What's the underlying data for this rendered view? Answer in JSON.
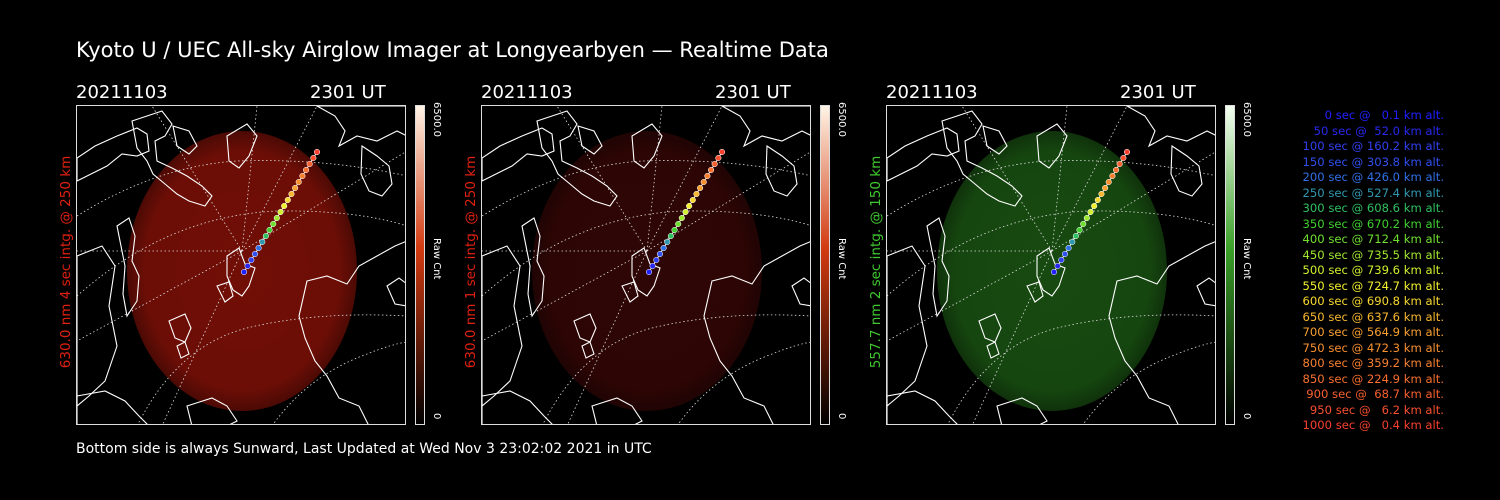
{
  "title": "Kyoto U / UEC All-sky Airglow Imager at Longyearbyen — Realtime Data",
  "footer": "Bottom side is always Sunward, Last Updated at Wed Nov  3 23:02:02 2021 in UTC",
  "panels": [
    {
      "date": "20211103",
      "time": "2301 UT",
      "ylabel": "630.0 nm 4 sec intg. @ 250 km",
      "label_color": "#e02010",
      "cbar_max": "6500.0",
      "cbar_unit": "Raw Cnt",
      "cbar_min": "0",
      "glow_color": "#8a1208",
      "glow_opacity": 0.82,
      "cbar_top": "#fff4e6",
      "cbar_bottom": "#000000",
      "cbar_mid": "#d23a10"
    },
    {
      "date": "20211103",
      "time": "2301 UT",
      "ylabel": "630.0 nm 1 sec intg. @ 250 km",
      "label_color": "#e02010",
      "cbar_max": "6500.0",
      "cbar_unit": "Raw Cnt",
      "cbar_min": "0",
      "glow_color": "#3a0706",
      "glow_opacity": 0.8,
      "cbar_top": "#fff4e6",
      "cbar_bottom": "#000000",
      "cbar_mid": "#d23a10"
    },
    {
      "date": "20211103",
      "time": "2301 UT",
      "ylabel": "557.7 nm 2 sec intg. @ 150 km",
      "label_color": "#40c830",
      "cbar_max": "6500.0",
      "cbar_unit": "Raw Cnt",
      "cbar_min": "0",
      "glow_color": "#1c5a14",
      "glow_opacity": 0.82,
      "cbar_top": "#f4fff0",
      "cbar_bottom": "#000000",
      "cbar_mid": "#3aa028"
    }
  ],
  "legend": [
    {
      "text": "0 sec @   0.1 km alt.",
      "color": "#2020ff"
    },
    {
      "text": "50 sec @  52.0 km alt.",
      "color": "#2828f0"
    },
    {
      "text": "100 sec @ 160.2 km alt.",
      "color": "#3040f0"
    },
    {
      "text": "150 sec @ 303.8 km alt.",
      "color": "#3050f0"
    },
    {
      "text": "200 sec @ 426.0 km alt.",
      "color": "#3070e8"
    },
    {
      "text": "250 sec @ 527.4 km alt.",
      "color": "#3098b0"
    },
    {
      "text": "300 sec @ 608.6 km alt.",
      "color": "#30c060"
    },
    {
      "text": "350 sec @ 670.2 km alt.",
      "color": "#40d030"
    },
    {
      "text": "400 sec @ 712.4 km alt.",
      "color": "#70e030"
    },
    {
      "text": "450 sec @ 735.5 km alt.",
      "color": "#a0e830"
    },
    {
      "text": "500 sec @ 739.6 km alt.",
      "color": "#d0f030"
    },
    {
      "text": "550 sec @ 724.7 km alt.",
      "color": "#f0f030"
    },
    {
      "text": "600 sec @ 690.8 km alt.",
      "color": "#f8d830"
    },
    {
      "text": "650 sec @ 637.6 km alt.",
      "color": "#f8b830"
    },
    {
      "text": "700 sec @ 564.9 km alt.",
      "color": "#f8a030"
    },
    {
      "text": "750 sec @ 472.3 km alt.",
      "color": "#f89030"
    },
    {
      "text": "800 sec @ 359.2 km alt.",
      "color": "#f88030"
    },
    {
      "text": "850 sec @ 224.9 km alt.",
      "color": "#f87030"
    },
    {
      "text": "900 sec @  68.7 km alt.",
      "color": "#f86030"
    },
    {
      "text": "950 sec @   6.2 km alt.",
      "color": "#f85030"
    },
    {
      "text": "1000 sec @   0.4 km alt.",
      "color": "#f84030"
    }
  ],
  "chart_data": {
    "type": "scatter",
    "title": "Kyoto U / UEC All-sky Airglow Imager at Longyearbyen — Realtime Data",
    "series": [
      {
        "name": "trajectory",
        "time_sec": [
          0,
          50,
          100,
          150,
          200,
          250,
          300,
          350,
          400,
          450,
          500,
          550,
          600,
          650,
          700,
          750,
          800,
          850,
          900,
          950,
          1000
        ],
        "altitude_km": [
          0.1,
          52.0,
          160.2,
          303.8,
          426.0,
          527.4,
          608.6,
          670.2,
          712.4,
          735.5,
          739.6,
          724.7,
          690.8,
          637.6,
          564.9,
          472.3,
          359.2,
          224.9,
          68.7,
          6.2,
          0.4
        ]
      }
    ],
    "colorbar_range": [
      0,
      6500.0
    ],
    "colorbar_label": "Raw Cnt"
  }
}
